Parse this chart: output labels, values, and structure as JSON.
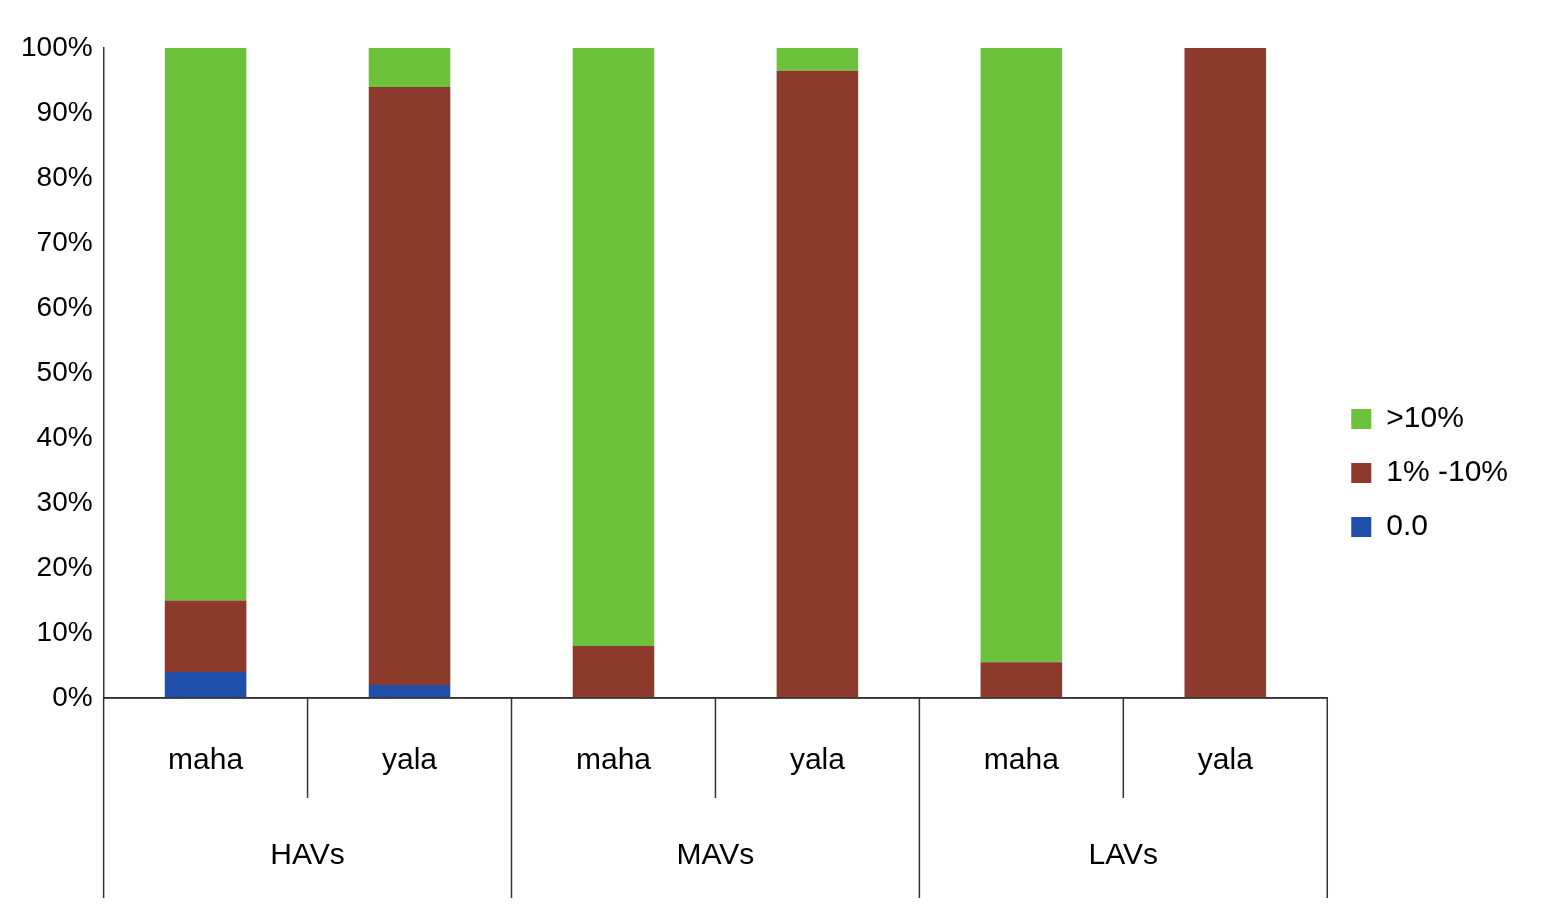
{
  "chart_data": {
    "type": "bar",
    "stacked": true,
    "categories": [
      "maha",
      "yala",
      "maha",
      "yala",
      "maha",
      "yala"
    ],
    "series": [
      {
        "name": "0.0",
        "color": "#1f4fa8",
        "values": [
          4,
          2,
          0,
          0,
          0,
          0
        ]
      },
      {
        "name": "1% -10%",
        "color": "#8b3a2c",
        "values": [
          11,
          92,
          8,
          96.5,
          5.5,
          100
        ]
      },
      {
        "name": ">10%",
        "color": "#6cc23a",
        "values": [
          85,
          6,
          92,
          3.5,
          94.5,
          0
        ]
      }
    ],
    "ylim": [
      0,
      100
    ],
    "yticks": [
      {
        "value": 0,
        "label": "0%"
      },
      {
        "value": 10,
        "label": "10%"
      },
      {
        "value": 20,
        "label": "20%"
      },
      {
        "value": 30,
        "label": "30%"
      },
      {
        "value": 40,
        "label": "40%"
      },
      {
        "value": 50,
        "label": "50%"
      },
      {
        "value": 60,
        "label": "60%"
      },
      {
        "value": 70,
        "label": "70%"
      },
      {
        "value": 80,
        "label": "80%"
      },
      {
        "value": 90,
        "label": "90%"
      },
      {
        "value": 100,
        "label": "100%"
      }
    ],
    "grid": false,
    "legend": "right",
    "annotations": [
      "HAVs",
      "MAVs",
      "LAVs"
    ]
  }
}
